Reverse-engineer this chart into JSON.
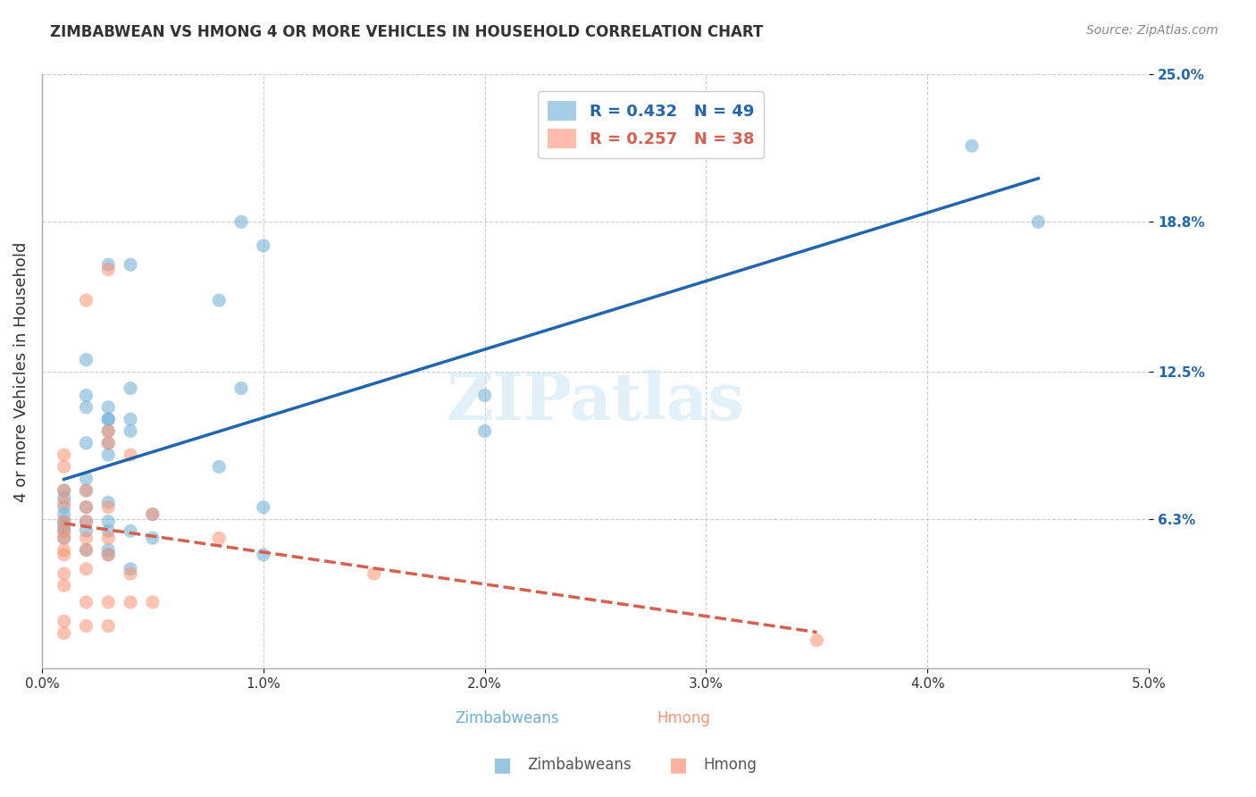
{
  "title": "ZIMBABWEAN VS HMONG 4 OR MORE VEHICLES IN HOUSEHOLD CORRELATION CHART",
  "source": "Source: ZipAtlas.com",
  "ylabel": "4 or more Vehicles in Household",
  "xlabel_blue": "Zimbabweans",
  "xlabel_pink": "Hmong",
  "legend_blue_R": "R = 0.432",
  "legend_blue_N": "N = 49",
  "legend_pink_R": "R = 0.257",
  "legend_pink_N": "N = 38",
  "xlim": [
    0.0,
    0.05
  ],
  "ylim": [
    0.0,
    0.25
  ],
  "xtick_labels": [
    "0.0%",
    "1.0%",
    "2.0%",
    "3.0%",
    "4.0%",
    "5.0%"
  ],
  "xtick_vals": [
    0.0,
    0.01,
    0.02,
    0.03,
    0.04,
    0.05
  ],
  "ytick_labels": [
    "6.3%",
    "12.5%",
    "18.8%",
    "25.0%"
  ],
  "ytick_vals": [
    0.063,
    0.125,
    0.188,
    0.25
  ],
  "blue_color": "#6baed6",
  "pink_color": "#fc9272",
  "blue_line_color": "#2166ac",
  "pink_line_color": "#d6604d",
  "watermark": "ZIPatlas",
  "blue_scatter": [
    [
      0.001,
      0.068
    ],
    [
      0.001,
      0.062
    ],
    [
      0.001,
      0.075
    ],
    [
      0.001,
      0.058
    ],
    [
      0.001,
      0.072
    ],
    [
      0.001,
      0.065
    ],
    [
      0.001,
      0.06
    ],
    [
      0.001,
      0.055
    ],
    [
      0.002,
      0.08
    ],
    [
      0.002,
      0.068
    ],
    [
      0.002,
      0.062
    ],
    [
      0.002,
      0.095
    ],
    [
      0.002,
      0.075
    ],
    [
      0.002,
      0.058
    ],
    [
      0.002,
      0.05
    ],
    [
      0.002,
      0.11
    ],
    [
      0.002,
      0.115
    ],
    [
      0.002,
      0.13
    ],
    [
      0.003,
      0.1
    ],
    [
      0.003,
      0.095
    ],
    [
      0.003,
      0.09
    ],
    [
      0.003,
      0.105
    ],
    [
      0.003,
      0.105
    ],
    [
      0.003,
      0.11
    ],
    [
      0.003,
      0.07
    ],
    [
      0.003,
      0.062
    ],
    [
      0.003,
      0.058
    ],
    [
      0.003,
      0.05
    ],
    [
      0.003,
      0.048
    ],
    [
      0.003,
      0.17
    ],
    [
      0.004,
      0.1
    ],
    [
      0.004,
      0.118
    ],
    [
      0.004,
      0.105
    ],
    [
      0.004,
      0.17
    ],
    [
      0.004,
      0.058
    ],
    [
      0.004,
      0.042
    ],
    [
      0.005,
      0.065
    ],
    [
      0.005,
      0.055
    ],
    [
      0.008,
      0.155
    ],
    [
      0.008,
      0.085
    ],
    [
      0.009,
      0.188
    ],
    [
      0.009,
      0.118
    ],
    [
      0.01,
      0.178
    ],
    [
      0.01,
      0.068
    ],
    [
      0.01,
      0.048
    ],
    [
      0.02,
      0.115
    ],
    [
      0.02,
      0.1
    ],
    [
      0.042,
      0.22
    ],
    [
      0.045,
      0.188
    ]
  ],
  "pink_scatter": [
    [
      0.001,
      0.058
    ],
    [
      0.001,
      0.07
    ],
    [
      0.001,
      0.075
    ],
    [
      0.001,
      0.085
    ],
    [
      0.001,
      0.09
    ],
    [
      0.001,
      0.062
    ],
    [
      0.001,
      0.055
    ],
    [
      0.001,
      0.05
    ],
    [
      0.001,
      0.048
    ],
    [
      0.001,
      0.04
    ],
    [
      0.001,
      0.035
    ],
    [
      0.001,
      0.02
    ],
    [
      0.001,
      0.015
    ],
    [
      0.002,
      0.075
    ],
    [
      0.002,
      0.068
    ],
    [
      0.002,
      0.062
    ],
    [
      0.002,
      0.055
    ],
    [
      0.002,
      0.05
    ],
    [
      0.002,
      0.042
    ],
    [
      0.002,
      0.028
    ],
    [
      0.002,
      0.018
    ],
    [
      0.002,
      0.155
    ],
    [
      0.003,
      0.1
    ],
    [
      0.003,
      0.095
    ],
    [
      0.003,
      0.068
    ],
    [
      0.003,
      0.055
    ],
    [
      0.003,
      0.048
    ],
    [
      0.003,
      0.028
    ],
    [
      0.003,
      0.018
    ],
    [
      0.003,
      0.168
    ],
    [
      0.004,
      0.09
    ],
    [
      0.004,
      0.04
    ],
    [
      0.004,
      0.028
    ],
    [
      0.005,
      0.065
    ],
    [
      0.005,
      0.028
    ],
    [
      0.008,
      0.055
    ],
    [
      0.015,
      0.04
    ],
    [
      0.035,
      0.012
    ]
  ]
}
